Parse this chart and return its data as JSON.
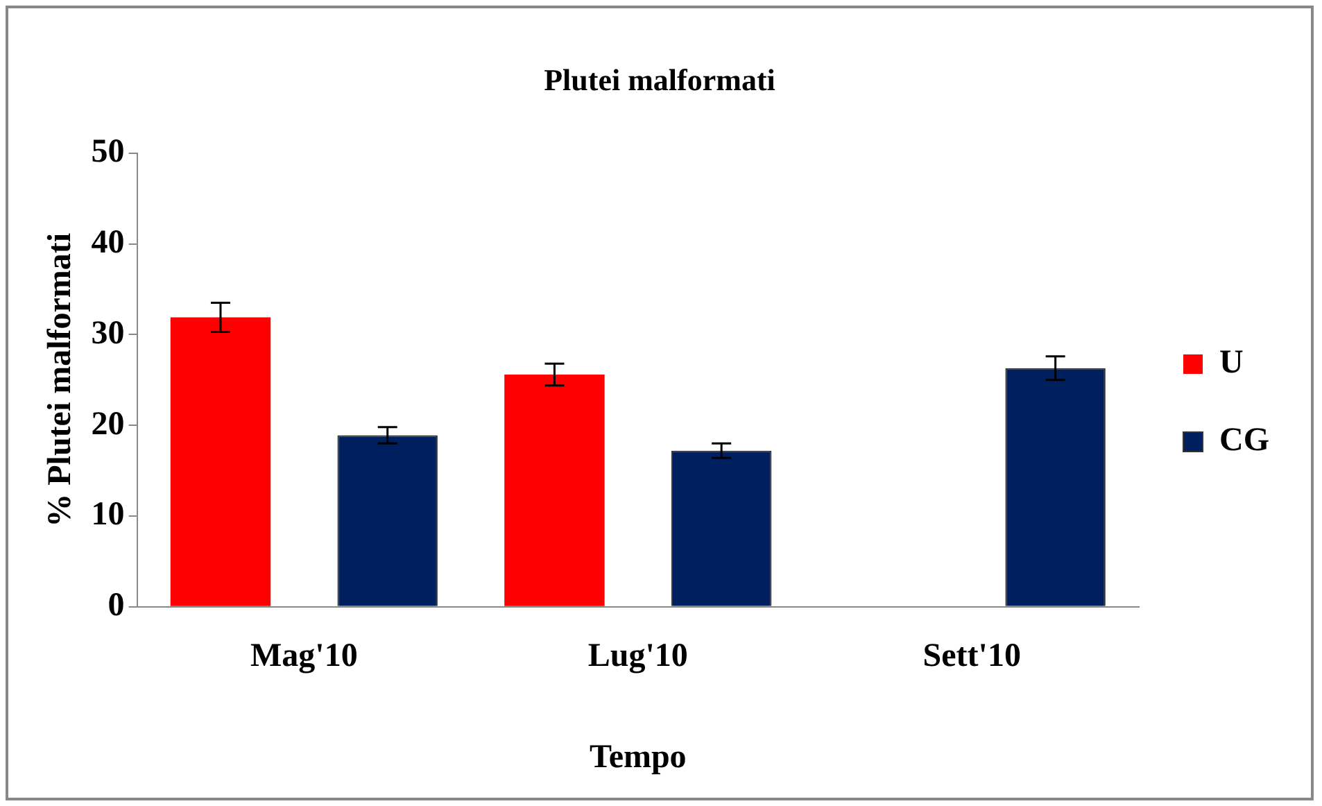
{
  "chart_data": {
    "type": "bar",
    "title": "Plutei malformati",
    "xlabel": "Tempo",
    "ylabel": "% Plutei malformati",
    "categories": [
      "Mag'10",
      "Lug'10",
      "Sett'10"
    ],
    "series": [
      {
        "name": "U",
        "color": "#ff0000",
        "values": [
          31.9,
          25.6,
          null
        ],
        "errors": [
          1.6,
          1.2,
          null
        ]
      },
      {
        "name": "CG",
        "color": "#001f5f",
        "values": [
          18.9,
          17.2,
          26.3
        ],
        "errors": [
          0.9,
          0.8,
          1.3
        ]
      }
    ],
    "ylim": [
      0,
      50
    ],
    "yticks": [
      0,
      10,
      20,
      30,
      40,
      50
    ],
    "grid": false,
    "legend": "right"
  }
}
